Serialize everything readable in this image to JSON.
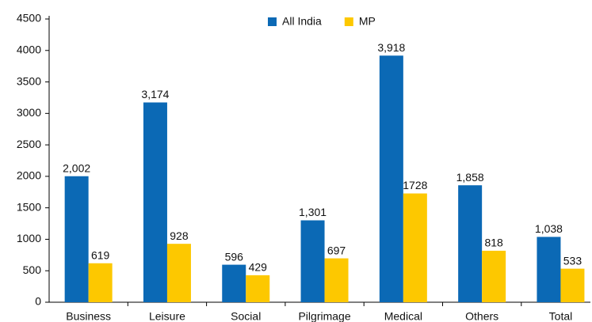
{
  "chart_data": {
    "type": "bar",
    "categories": [
      "Business",
      "Leisure",
      "Social",
      "Pilgrimage",
      "Medical",
      "Others",
      "Total"
    ],
    "series": [
      {
        "name": "All India",
        "color": "#0b69b5",
        "values": [
          2002,
          3174,
          596,
          1301,
          3918,
          1858,
          1038
        ],
        "value_labels": [
          "2,002",
          "3,174",
          "596",
          "1,301",
          "3,918",
          "1,858",
          "1,038"
        ]
      },
      {
        "name": "MP",
        "color": "#fdc800",
        "values": [
          619,
          928,
          429,
          697,
          1728,
          818,
          533
        ]
      }
    ],
    "ylim": [
      0,
      4500
    ],
    "yticks": [
      0,
      500,
      1000,
      1500,
      2000,
      2500,
      3000,
      3500,
      4000,
      4500
    ],
    "grid": false,
    "legend": "top"
  }
}
